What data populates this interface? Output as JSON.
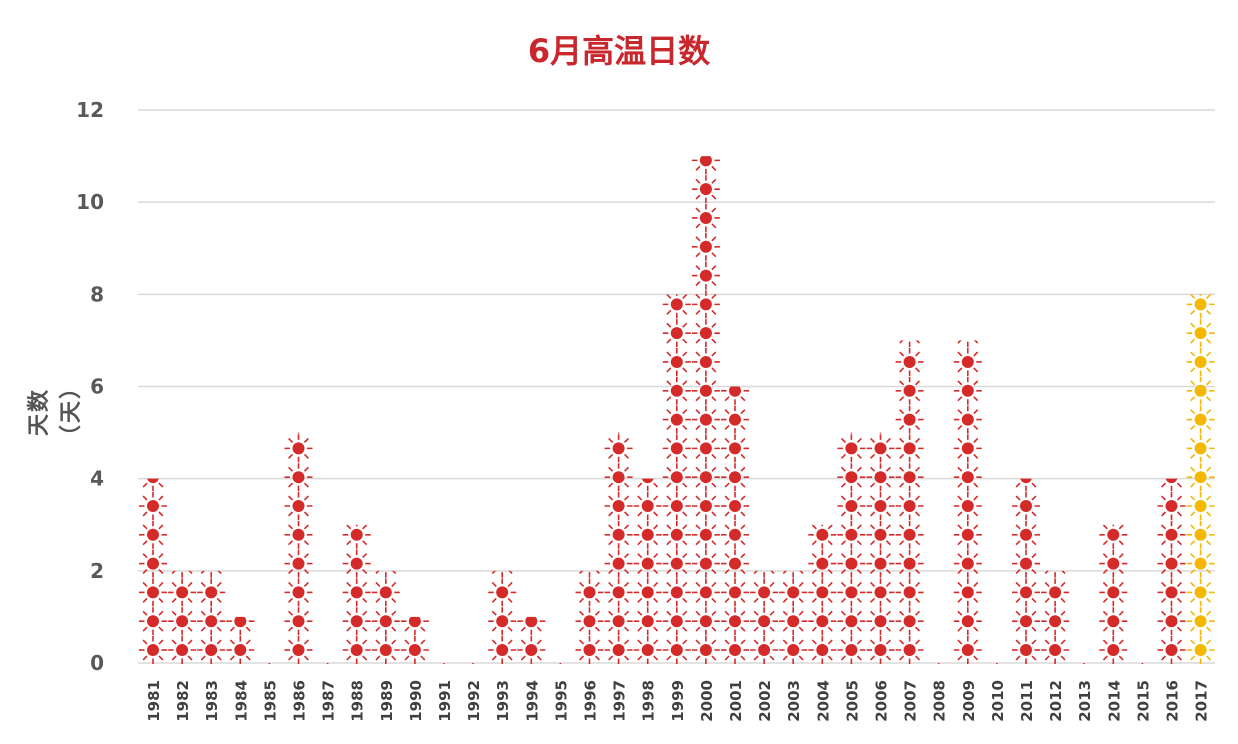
{
  "chart_data": {
    "type": "bar",
    "title": "6月高温日数",
    "ylabel": "天数（天）",
    "xlabel": "",
    "ylim": [
      0,
      12
    ],
    "yticks": [
      0,
      2,
      4,
      6,
      8,
      10,
      12
    ],
    "grid": true,
    "categories": [
      "1981",
      "1982",
      "1983",
      "1984",
      "1985",
      "1986",
      "1987",
      "1988",
      "1989",
      "1990",
      "1991",
      "1992",
      "1993",
      "1994",
      "1995",
      "1996",
      "1997",
      "1998",
      "1999",
      "2000",
      "2001",
      "2002",
      "2003",
      "2004",
      "2005",
      "2006",
      "2007",
      "2008",
      "2009",
      "2010",
      "2011",
      "2012",
      "2013",
      "2014",
      "2015",
      "2016",
      "2017"
    ],
    "values": [
      4,
      2,
      2,
      1,
      0,
      5,
      0,
      3,
      2,
      1,
      0,
      0,
      2,
      1,
      0,
      2,
      5,
      4,
      8,
      11,
      6,
      2,
      2,
      3,
      5,
      5,
      7,
      0,
      7,
      0,
      4,
      2,
      0,
      3,
      0,
      4,
      8
    ],
    "colors": {
      "default": "#d42a2a",
      "highlight": "#f5b800",
      "grid": "#d9d9d9"
    },
    "highlight_category": "2017",
    "marker": "sun-icon"
  }
}
